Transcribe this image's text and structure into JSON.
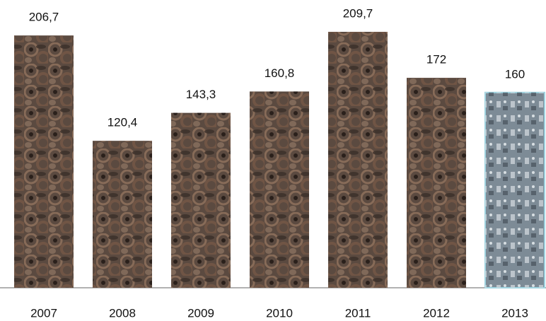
{
  "chart_data": {
    "type": "bar",
    "categories": [
      "2007",
      "2008",
      "2009",
      "2010",
      "2011",
      "2012",
      "2013"
    ],
    "values": [
      206.7,
      120.4,
      143.3,
      160.8,
      209.7,
      172,
      160
    ],
    "value_labels": [
      "206,7",
      "120,4",
      "143,3",
      "160,8",
      "209,7",
      "172",
      "160"
    ],
    "colors": [
      "#5b4a40",
      "#5b4a40",
      "#5b4a40",
      "#5b4a40",
      "#5b4a40",
      "#5b4a40",
      "#7d8b96"
    ]
  }
}
